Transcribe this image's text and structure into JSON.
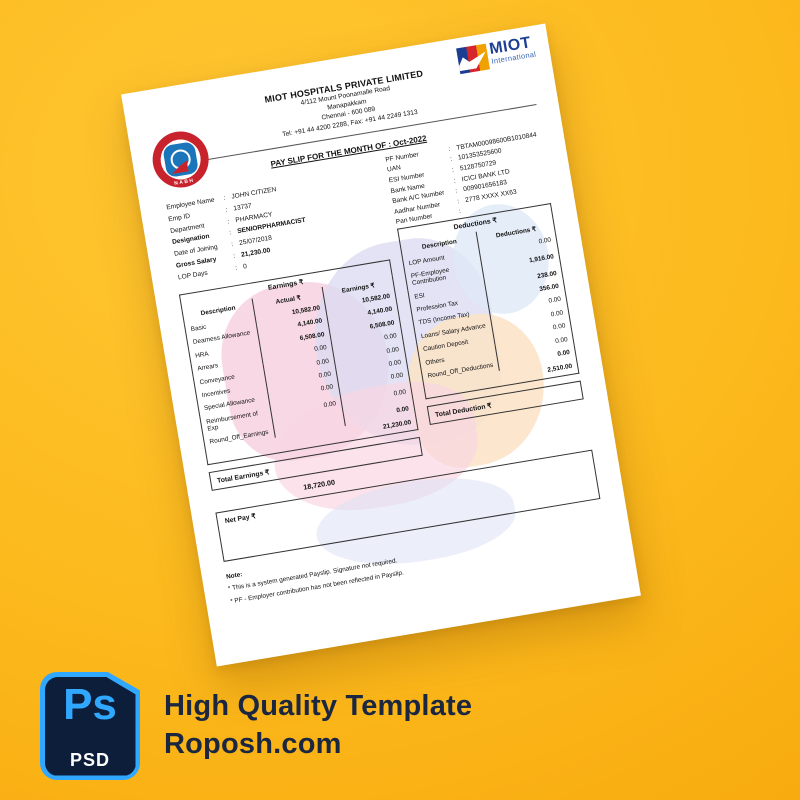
{
  "colors": {
    "bg-light": "#ffc733",
    "bg-dark": "#f6a408",
    "navy": "#1b2740",
    "ps-blue": "#31a8ff",
    "icon-navy": "#0c1e3a",
    "miot-blue": "#1c3f94",
    "miot-light": "#3a67b8",
    "nabh-red": "#c8232c",
    "nabh-blue": "#1b75bb"
  },
  "paper": {
    "company": {
      "name": "MIOT HOSPITALS PRIVATE LIMITED",
      "address1": "4/112 Mount Poonamalle Road",
      "address2": "Manapakkam",
      "address3": "Chennai - 600 089",
      "phone": "Tel: +91 44 4200 2288, Fax: +91 44 2249 1313"
    },
    "logos": {
      "miot": "MIOT",
      "miot_sub": "International",
      "nabh": "NABH"
    },
    "title": "PAY SLIP FOR THE MONTH OF : Oct-2022",
    "employee": {
      "rows": [
        {
          "label": "Employee Name",
          "value": "JOHN CITIZEN"
        },
        {
          "label": "Emp ID",
          "value": "13737"
        },
        {
          "label": "Department",
          "value": "PHARMACY"
        },
        {
          "label": "Designation",
          "value": "SENIORPHARMACIST"
        },
        {
          "label": "Date of Joining",
          "value": "25/07/2018"
        },
        {
          "label": "Gross Salary",
          "value": "21,230.00"
        },
        {
          "label": "LOP Days",
          "value": "0"
        }
      ]
    },
    "statutory": {
      "rows": [
        {
          "label": "PF Number",
          "value": "TBTAM00098600B1010844"
        },
        {
          "label": "UAN",
          "value": "101353525600"
        },
        {
          "label": "ESI Number",
          "value": "5128750729"
        },
        {
          "label": "Bank Name",
          "value": "ICICI BANK LTD"
        },
        {
          "label": "Bank A/C Number",
          "value": "009901656183"
        },
        {
          "label": "Aadhar Number",
          "value": "2778 XXXX XX63"
        },
        {
          "label": "Pan Number",
          "value": ""
        }
      ]
    },
    "earnings": {
      "title": "Earnings ₹",
      "col_desc": "Description",
      "col_actual": "Actual ₹",
      "col_earn": "Earnings ₹",
      "rows": [
        {
          "label": "Basic",
          "actual": "10,582.00",
          "earn": "10,582.00"
        },
        {
          "label": "Dearness Allowance",
          "actual": "4,140.00",
          "earn": "4,140.00"
        },
        {
          "label": "HRA",
          "actual": "6,508.00",
          "earn": "6,508.00"
        },
        {
          "label": "Arrears",
          "actual": "0.00",
          "earn": "0.00"
        },
        {
          "label": "Conveyance",
          "actual": "0.00",
          "earn": "0.00"
        },
        {
          "label": "Incentives",
          "actual": "0.00",
          "earn": "0.00"
        },
        {
          "label": "Special Allowance",
          "actual": "0.00",
          "earn": "0.00"
        },
        {
          "label": "Reimbursement of Exp",
          "actual": "0.00",
          "earn": "0.00"
        },
        {
          "label": "Round_Off_Earnings",
          "actual": "",
          "earn": "0.00"
        }
      ],
      "total": "21,230.00"
    },
    "deductions": {
      "title": "Deductions ₹",
      "col_desc": "Description",
      "col_amount": "Deductions ₹",
      "rows": [
        {
          "label": "LOP Amount",
          "amount": "0.00"
        },
        {
          "label": "PF-Employee Contribution",
          "amount": "1,916.00"
        },
        {
          "label": "ESI",
          "amount": "238.00"
        },
        {
          "label": "Profession Tax",
          "amount": "356.00"
        },
        {
          "label": "TDS (Income Tax)",
          "amount": "0.00"
        },
        {
          "label": "Loans/ Salary Advance",
          "amount": "0.00"
        },
        {
          "label": "Caution Deposit",
          "amount": "0.00"
        },
        {
          "label": "Others",
          "amount": "0.00"
        },
        {
          "label": "Round_Off_Deductions",
          "amount": "0.00"
        }
      ],
      "total": "2,510.00",
      "box_label": "Total Deduction ₹"
    },
    "totals": {
      "earnings_box": "Total Earnings ₹",
      "net_value": "18,720.00",
      "net_box": "Net Pay ₹"
    },
    "note": {
      "heading": "Note:",
      "line1": "* This is a system generated Payslip. Signature not required.",
      "line2": "* PF - Employer contribution has not been reflected in Payslip."
    }
  },
  "promo": {
    "ps": "Ps",
    "psd": "PSD",
    "line1": "High Quality Template",
    "line2": "Roposh.com"
  }
}
